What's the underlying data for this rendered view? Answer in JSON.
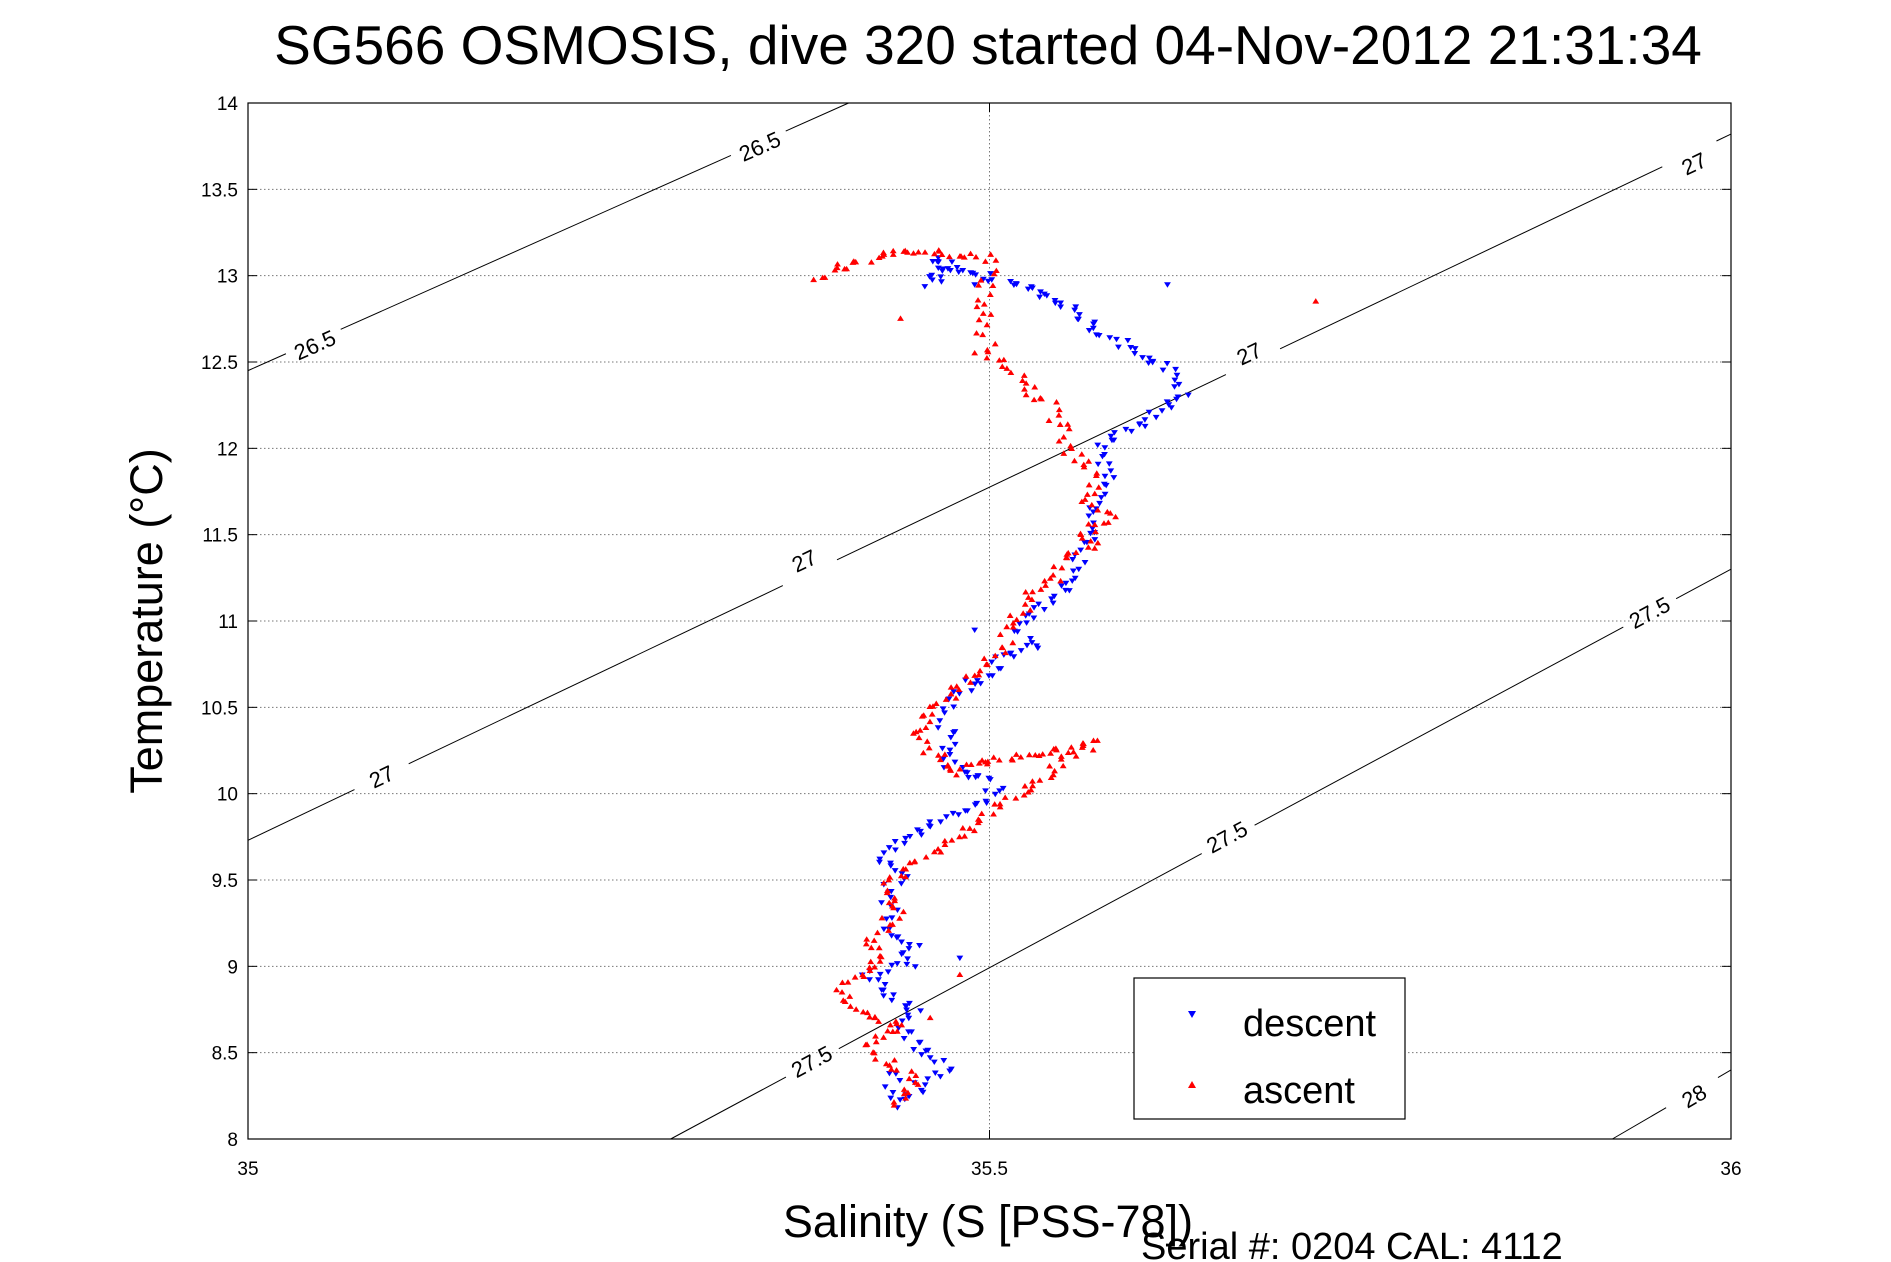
{
  "chart_data": {
    "type": "scatter",
    "title": "SG566 OSMOSIS, dive 320 started 04-Nov-2012 21:31:34",
    "xlabel": "Salinity (S [PSS-78])",
    "ylabel": "Temperature (°C)",
    "footer": "Serial #: 0204  CAL: 4112",
    "xlim": [
      35,
      36
    ],
    "ylim": [
      8,
      14
    ],
    "xticks": [
      35,
      35.5,
      36
    ],
    "xtick_labels": [
      "35",
      "35.5",
      "36"
    ],
    "yticks": [
      8,
      8.5,
      9,
      9.5,
      10,
      10.5,
      11,
      11.5,
      12,
      12.5,
      13,
      13.5,
      14
    ],
    "ytick_labels": [
      "8",
      "8.5",
      "9",
      "9.5",
      "10",
      "10.5",
      "11",
      "11.5",
      "12",
      "12.5",
      "13",
      "13.5",
      "14"
    ],
    "grid": true,
    "legend_position": "bottom-right",
    "legend": [
      "descent",
      "ascent"
    ],
    "colors": {
      "descent": "#0000ff",
      "ascent": "#ff0000",
      "contour": "#000000",
      "grid": "#888888"
    },
    "density_contours": [
      {
        "label": "26.5",
        "points": [
          [
            35.0,
            12.45
          ],
          [
            35.405,
            14.0
          ]
        ],
        "label_positions": [
          [
            35.045,
            12.6
          ],
          [
            35.345,
            13.75
          ]
        ]
      },
      {
        "label": "27",
        "points": [
          [
            35.0,
            9.73
          ],
          [
            36.0,
            13.82
          ]
        ],
        "label_positions": [
          [
            35.09,
            10.1
          ],
          [
            35.375,
            11.35
          ],
          [
            35.675,
            12.55
          ],
          [
            35.975,
            13.65
          ]
        ]
      },
      {
        "label": "27.5",
        "points": [
          [
            35.285,
            8.0
          ],
          [
            36.0,
            11.3
          ]
        ],
        "label_positions": [
          [
            35.38,
            8.45
          ],
          [
            35.66,
            9.75
          ],
          [
            35.945,
            11.05
          ]
        ]
      },
      {
        "label": "28",
        "points": [
          [
            35.92,
            8.0
          ],
          [
            36.0,
            8.4
          ]
        ],
        "label_positions": [
          [
            35.975,
            8.25
          ]
        ]
      }
    ],
    "series": [
      {
        "name": "descent",
        "marker": "triangle-down",
        "color": "#0000ff",
        "path": [
          [
            35.46,
            13.08
          ],
          [
            35.465,
            13.1
          ],
          [
            35.47,
            13.07
          ],
          [
            35.46,
            12.95
          ],
          [
            35.47,
            13.06
          ],
          [
            35.52,
            12.95
          ],
          [
            35.55,
            12.85
          ],
          [
            35.57,
            12.7
          ],
          [
            35.6,
            12.55
          ],
          [
            35.62,
            12.45
          ],
          [
            35.63,
            12.3
          ],
          [
            35.6,
            12.12
          ],
          [
            35.58,
            12.05
          ],
          [
            35.575,
            11.95
          ],
          [
            35.578,
            11.85
          ],
          [
            35.575,
            11.75
          ],
          [
            35.57,
            11.65
          ],
          [
            35.575,
            11.55
          ],
          [
            35.565,
            11.45
          ],
          [
            35.56,
            11.35
          ],
          [
            35.56,
            11.25
          ],
          [
            35.545,
            11.15
          ],
          [
            35.53,
            11.05
          ],
          [
            35.52,
            10.95
          ],
          [
            35.53,
            10.85
          ],
          [
            35.51,
            10.8
          ],
          [
            35.5,
            10.7
          ],
          [
            35.48,
            10.6
          ],
          [
            35.47,
            10.5
          ],
          [
            35.47,
            10.4
          ],
          [
            35.475,
            10.3
          ],
          [
            35.47,
            10.2
          ],
          [
            35.48,
            10.12
          ],
          [
            35.5,
            10.1
          ],
          [
            35.505,
            10.02
          ],
          [
            35.48,
            9.9
          ],
          [
            35.46,
            9.8
          ],
          [
            35.44,
            9.72
          ],
          [
            35.43,
            9.62
          ],
          [
            35.44,
            9.52
          ],
          [
            35.43,
            9.42
          ],
          [
            35.435,
            9.32
          ],
          [
            35.43,
            9.2
          ],
          [
            35.45,
            9.1
          ],
          [
            35.44,
            9.02
          ],
          [
            35.42,
            8.95
          ],
          [
            35.43,
            8.85
          ],
          [
            35.45,
            8.75
          ],
          [
            35.44,
            8.65
          ],
          [
            35.45,
            8.55
          ],
          [
            35.46,
            8.48
          ],
          [
            35.47,
            8.42
          ],
          [
            35.46,
            8.35
          ],
          [
            35.45,
            8.28
          ],
          [
            35.44,
            8.2
          ],
          [
            35.43,
            8.42
          ]
        ],
        "scatter": [
          [
            35.62,
            12.95
          ],
          [
            35.56,
            12.75
          ],
          [
            35.61,
            12.5
          ],
          [
            35.49,
            10.95
          ],
          [
            35.49,
            12.95
          ],
          [
            35.48,
            9.05
          ],
          [
            35.45,
            9.0
          ]
        ]
      },
      {
        "name": "ascent",
        "marker": "triangle-up",
        "color": "#ff0000",
        "path": [
          [
            35.38,
            12.98
          ],
          [
            35.4,
            13.05
          ],
          [
            35.42,
            13.1
          ],
          [
            35.44,
            13.13
          ],
          [
            35.45,
            13.14
          ],
          [
            35.465,
            13.13
          ],
          [
            35.48,
            13.12
          ],
          [
            35.5,
            13.1
          ],
          [
            35.495,
            12.7
          ],
          [
            35.5,
            12.55
          ],
          [
            35.52,
            12.4
          ],
          [
            35.54,
            12.25
          ],
          [
            35.55,
            12.1
          ],
          [
            35.55,
            12.0
          ],
          [
            35.565,
            11.9
          ],
          [
            35.57,
            11.8
          ],
          [
            35.565,
            11.7
          ],
          [
            35.58,
            11.6
          ],
          [
            35.56,
            11.5
          ],
          [
            35.57,
            11.45
          ],
          [
            35.55,
            11.35
          ],
          [
            35.545,
            11.25
          ],
          [
            35.53,
            11.15
          ],
          [
            35.52,
            11.05
          ],
          [
            35.51,
            10.95
          ],
          [
            35.51,
            10.85
          ],
          [
            35.5,
            10.75
          ],
          [
            35.485,
            10.65
          ],
          [
            35.47,
            10.55
          ],
          [
            35.46,
            10.45
          ],
          [
            35.45,
            10.35
          ],
          [
            35.46,
            10.25
          ],
          [
            35.47,
            10.15
          ],
          [
            35.48,
            10.12
          ],
          [
            35.49,
            10.18
          ],
          [
            35.51,
            10.2
          ],
          [
            35.53,
            10.22
          ],
          [
            35.56,
            10.28
          ],
          [
            35.57,
            10.3
          ],
          [
            35.46,
            9.65
          ],
          [
            35.445,
            9.55
          ],
          [
            35.43,
            9.45
          ],
          [
            35.44,
            9.35
          ],
          [
            35.43,
            9.25
          ],
          [
            35.42,
            9.15
          ],
          [
            35.43,
            9.05
          ],
          [
            35.41,
            8.95
          ],
          [
            35.4,
            8.85
          ],
          [
            35.41,
            8.75
          ],
          [
            35.44,
            8.65
          ],
          [
            35.42,
            8.55
          ],
          [
            35.43,
            8.45
          ],
          [
            35.45,
            8.35
          ],
          [
            35.44,
            8.25
          ],
          [
            35.43,
            8.18
          ]
        ],
        "scatter": [
          [
            35.72,
            12.85
          ],
          [
            35.44,
            12.75
          ],
          [
            35.49,
            12.55
          ],
          [
            35.48,
            8.95
          ],
          [
            35.46,
            8.7
          ]
        ]
      }
    ]
  }
}
